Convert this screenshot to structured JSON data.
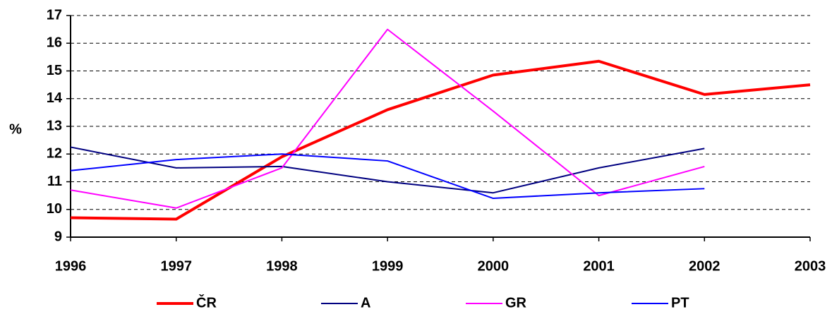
{
  "chart_data": {
    "type": "line",
    "x": [
      1996,
      1997,
      1998,
      1999,
      2000,
      2001,
      2002,
      2003
    ],
    "xlim": [
      1996,
      2003
    ],
    "xticks": [
      1996,
      1997,
      1998,
      1999,
      2000,
      2001,
      2002,
      2003
    ],
    "ylim": [
      9,
      17
    ],
    "yticks": [
      9,
      10,
      11,
      12,
      13,
      14,
      15,
      16,
      17
    ],
    "ylabel": "%",
    "grid": true,
    "legend": "bottom",
    "series": [
      {
        "name": "ČR",
        "color": "#ff0000",
        "values": [
          9.7,
          9.65,
          11.9,
          13.6,
          14.85,
          15.35,
          14.15,
          14.5
        ]
      },
      {
        "name": "A",
        "color": "#000080",
        "values": [
          12.25,
          11.5,
          11.55,
          11.0,
          10.6,
          11.5,
          12.2,
          null
        ]
      },
      {
        "name": "GR",
        "color": "#ff00ff",
        "values": [
          10.7,
          10.05,
          11.5,
          16.5,
          13.55,
          10.5,
          11.55,
          null
        ]
      },
      {
        "name": "PT",
        "color": "#0000ff",
        "values": [
          11.4,
          11.8,
          12.0,
          11.75,
          10.4,
          10.6,
          10.75,
          null
        ]
      }
    ]
  }
}
